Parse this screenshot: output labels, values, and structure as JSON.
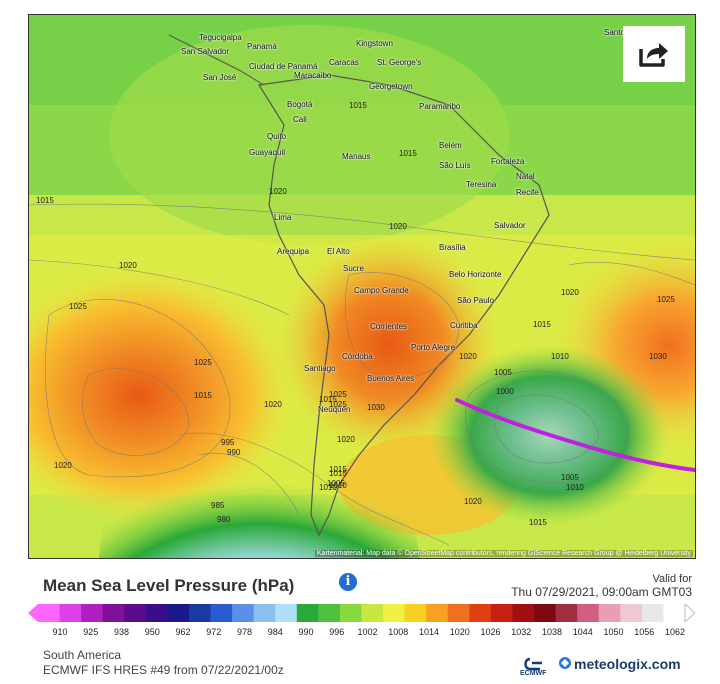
{
  "map": {
    "cities": [
      "Tegucigalpa",
      "San Salvador",
      "San José",
      "Ciudad de Panamá",
      "Maracaibo",
      "Caracas",
      "Kingstown",
      "St. George's",
      "Georgetown",
      "Paramaribo",
      "Bogotá",
      "Cali",
      "Quito",
      "Guayaquil",
      "Manaus",
      "Belém",
      "São Luís",
      "Fortaleza",
      "Natal",
      "Teresina",
      "Recife",
      "Salvador",
      "Lima",
      "Arequipa",
      "El Alto",
      "Sucre",
      "Brasília",
      "Belo Horizonte",
      "São Paulo",
      "Curitiba",
      "Porto Alegre",
      "Campo Grande",
      "Corrientes",
      "Córdoba",
      "Santiago",
      "Buenos Aires",
      "Neuquén",
      "Panamá",
      "Santo Domingo"
    ],
    "isobar_labels": [
      "1015",
      "1015",
      "1015",
      "1020",
      "1020",
      "1025",
      "1025",
      "1015",
      "1020",
      "1020",
      "1025",
      "1030",
      "1015",
      "1020",
      "1025",
      "1030",
      "1020",
      "1015",
      "1010",
      "1005",
      "1000",
      "1005",
      "1010",
      "1015",
      "1020",
      "1015",
      "1010",
      "995",
      "990",
      "985",
      "980",
      "1020",
      "1025",
      "1015",
      "1010",
      "1005",
      "1020"
    ],
    "attribution": "Kartenmaterial: Map data © OpenStreetMap contributors, rendering GIScience Research Group @ Heidelberg University",
    "share_icon": "share-arrow-icon"
  },
  "title": "Mean Sea Level Pressure (hPa)",
  "info_icon": "info-icon",
  "valid_for_label": "Valid for",
  "valid_time": "Thu 07/29/2021, 09:00am GMT03",
  "scale": {
    "ticks": [
      "910",
      "925",
      "938",
      "950",
      "962",
      "972",
      "978",
      "984",
      "990",
      "996",
      "1002",
      "1008",
      "1014",
      "1020",
      "1026",
      "1032",
      "1038",
      "1044",
      "1050",
      "1056",
      "1062"
    ],
    "colors": [
      "#ff66ff",
      "#e040e8",
      "#b020c0",
      "#80109a",
      "#5a0a8a",
      "#3a0e8a",
      "#1a1a8a",
      "#1a3aa0",
      "#2a5ad0",
      "#5a90e8",
      "#8ac0f0",
      "#b0e0f8",
      "#2aa838",
      "#50c040",
      "#8ad840",
      "#c8e840",
      "#f0f040",
      "#f8d020",
      "#f8a020",
      "#f07020",
      "#e04010",
      "#c82010",
      "#a01010",
      "#800810",
      "#a03040",
      "#d06080",
      "#e8a0b0",
      "#f0c8d0",
      "#e8e8e8",
      "#ffffff"
    ]
  },
  "footer": {
    "region": "South America",
    "model": "ECMWF IFS HRES #49 from 07/22/2021/00z",
    "ecmwf_label": "ECMWF",
    "brand": "meteologix.com"
  }
}
